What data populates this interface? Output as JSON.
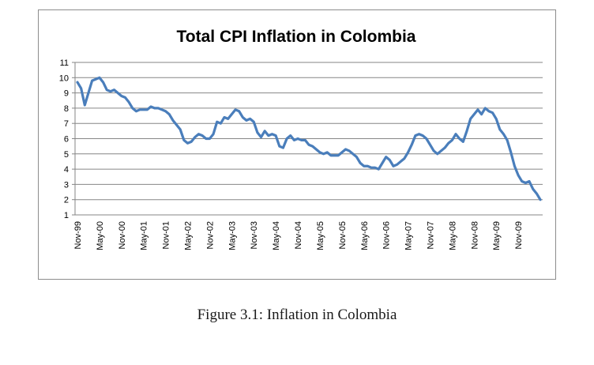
{
  "caption": "Figure 3.1: Inflation in Colombia",
  "chart_data": {
    "type": "line",
    "title": "Total CPI Inflation in Colombia",
    "xlabel": "",
    "ylabel": "",
    "ylim": [
      1,
      11
    ],
    "yticks": [
      1,
      2,
      3,
      4,
      5,
      6,
      7,
      8,
      9,
      10,
      11
    ],
    "grid": true,
    "legend": "none",
    "line_color": "#4a7ebb",
    "x_ticks": [
      "Nov-99",
      "May-00",
      "Nov-00",
      "May-01",
      "Nov-01",
      "May-02",
      "Nov-02",
      "May-03",
      "Nov-03",
      "May-04",
      "Nov-04",
      "May-05",
      "Nov-05",
      "May-06",
      "Nov-06",
      "May-07",
      "Nov-07",
      "May-08",
      "Nov-08",
      "May-09",
      "Nov-09"
    ],
    "x_period": "monthly, Nov-99 to Dec-09",
    "series": [
      {
        "values": [
          9.7,
          9.3,
          8.2,
          9.0,
          9.8,
          9.9,
          10.0,
          9.7,
          9.2,
          9.1,
          9.2,
          9.0,
          8.8,
          8.7,
          8.4,
          8.0,
          7.8,
          7.9,
          7.9,
          7.9,
          8.1,
          8.0,
          8.0,
          7.9,
          7.8,
          7.6,
          7.2,
          6.9,
          6.6,
          5.9,
          5.7,
          5.8,
          6.1,
          6.3,
          6.2,
          6.0,
          6.0,
          6.3,
          7.1,
          7.0,
          7.4,
          7.3,
          7.6,
          7.9,
          7.8,
          7.4,
          7.2,
          7.3,
          7.1,
          6.4,
          6.1,
          6.5,
          6.2,
          6.3,
          6.2,
          5.5,
          5.4,
          6.0,
          6.2,
          5.9,
          6.0,
          5.9,
          5.9,
          5.6,
          5.5,
          5.3,
          5.1,
          5.0,
          5.1,
          4.9,
          4.9,
          4.9,
          5.1,
          5.3,
          5.2,
          5.0,
          4.8,
          4.4,
          4.2,
          4.2,
          4.1,
          4.1,
          4.0,
          4.4,
          4.8,
          4.6,
          4.2,
          4.3,
          4.5,
          4.7,
          5.1,
          5.6,
          6.2,
          6.3,
          6.2,
          6.0,
          5.6,
          5.2,
          5.0,
          5.2,
          5.4,
          5.7,
          5.9,
          6.3,
          6.0,
          5.8,
          6.5,
          7.3,
          7.6,
          7.9,
          7.6,
          8.0,
          7.8,
          7.7,
          7.3,
          6.6,
          6.3,
          5.9,
          5.1,
          4.2,
          3.6,
          3.2,
          3.1,
          3.2,
          2.7,
          2.4,
          2.0
        ]
      }
    ]
  }
}
